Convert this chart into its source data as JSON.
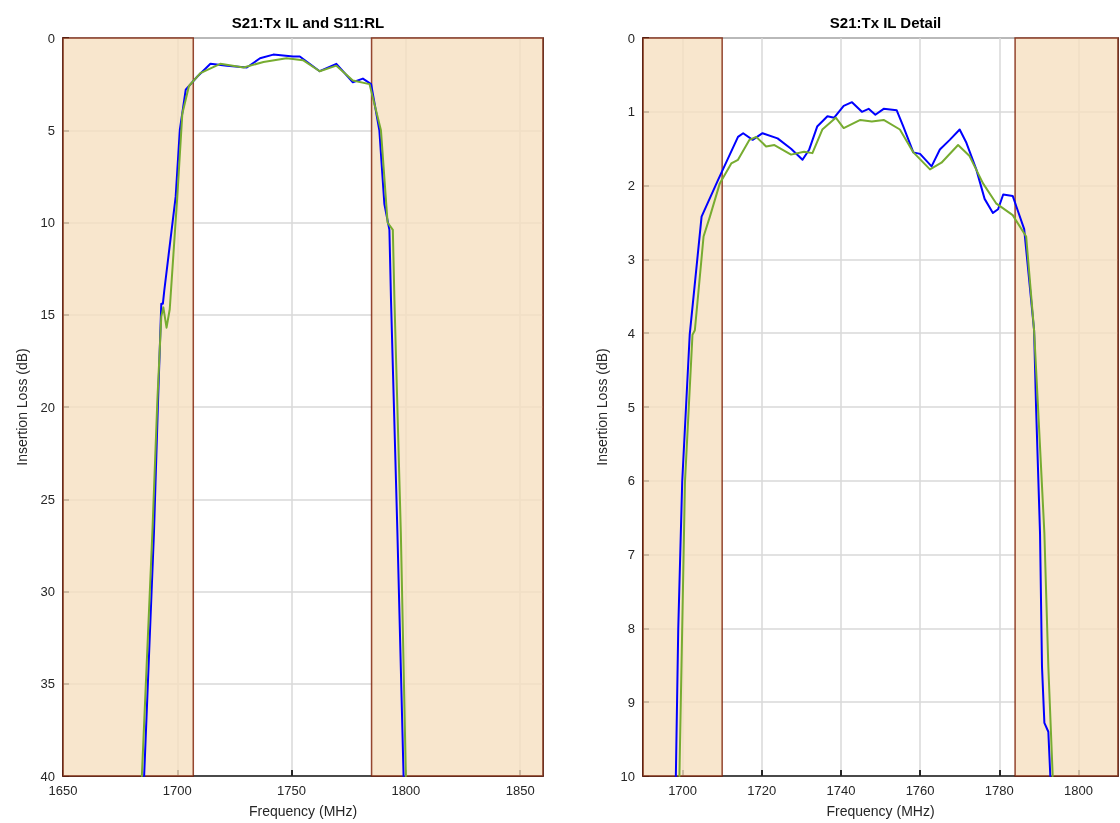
{
  "chart_data": [
    {
      "type": "line",
      "title": "S21:Tx IL and S11:RL",
      "xlabel": "Frequency (MHz)",
      "ylabel": "Insertion Loss (dB)",
      "xlim": [
        1650,
        1860
      ],
      "xticks": [
        1650,
        1700,
        1750,
        1800,
        1850
      ],
      "ylim": [
        40,
        0
      ],
      "yticks": [
        0,
        5,
        10,
        15,
        20,
        25,
        30,
        35,
        40
      ],
      "grid": true,
      "bands": [
        {
          "axis": "x",
          "from": 1650,
          "to": 1707,
          "color": "#f6e0c0"
        },
        {
          "axis": "x",
          "from": 1785,
          "to": 1860,
          "color": "#f6e0c0"
        }
      ],
      "series": [
        {
          "color": "#0000ff",
          "x": [
            1685.5,
            1689.8,
            1691.6,
            1693,
            1693.7,
            1694.3,
            1699.3,
            1701.1,
            1703.7,
            1708.7,
            1714.5,
            1721.7,
            1730.4,
            1736.2,
            1742,
            1750.7,
            1753.6,
            1762.3,
            1769.6,
            1776.8,
            1781.2,
            1784.8,
            1788.4,
            1790.6,
            1792.8,
            1793.5,
            1796.3,
            1799
          ],
          "values": [
            40,
            26.8,
            19.6,
            14.4,
            14.4,
            13.7,
            8.6,
            5,
            2.8,
            2.1,
            1.4,
            1.5,
            1.6,
            1.1,
            0.9,
            1,
            1,
            1.8,
            1.4,
            2.4,
            2.2,
            2.5,
            5,
            9,
            10.4,
            14.2,
            26.8,
            40
          ]
        },
        {
          "color": "#77ac30",
          "x": [
            1684.5,
            1689.1,
            1691.3,
            1693,
            1693.9,
            1695.3,
            1696.7,
            1700,
            1702.2,
            1705.1,
            1710.1,
            1718.8,
            1729,
            1737.7,
            1747.8,
            1755,
            1762.3,
            1769.6,
            1776.8,
            1784.1,
            1789.1,
            1792,
            1794.3,
            1795,
            1797.8,
            1800
          ],
          "values": [
            40,
            26.8,
            19.6,
            15.1,
            14.6,
            15.7,
            14.7,
            8.6,
            4.1,
            2.6,
            1.9,
            1.4,
            1.6,
            1.3,
            1.1,
            1.2,
            1.8,
            1.5,
            2.3,
            2.5,
            5,
            10,
            10.4,
            14.2,
            26.8,
            40
          ]
        }
      ]
    },
    {
      "type": "line",
      "title": "S21:Tx IL Detail",
      "xlabel": "Frequency (MHz)",
      "ylabel": "Insertion Loss (dB)",
      "xlim": [
        1690,
        1810
      ],
      "xticks": [
        1700,
        1720,
        1740,
        1760,
        1780,
        1800
      ],
      "ylim": [
        10,
        0
      ],
      "yticks": [
        0,
        1,
        2,
        3,
        4,
        5,
        6,
        7,
        8,
        9,
        10
      ],
      "grid": true,
      "bands": [
        {
          "axis": "x",
          "from": 1690,
          "to": 1710,
          "color": "#f6e0c0"
        },
        {
          "axis": "x",
          "from": 1784,
          "to": 1810,
          "color": "#f6e0c0"
        }
      ],
      "series": [
        {
          "color": "#0000ff",
          "x": [
            1698.3,
            1698.9,
            1699.9,
            1701.8,
            1704.8,
            1709,
            1714,
            1715.3,
            1717.7,
            1720.2,
            1724,
            1727.4,
            1730.3,
            1732,
            1734,
            1736.6,
            1738.3,
            1740.7,
            1742.8,
            1745.3,
            1747,
            1748.7,
            1750.8,
            1754.1,
            1755.7,
            1758.3,
            1760,
            1762.9,
            1765,
            1767.5,
            1770,
            1771.7,
            1774.2,
            1776.3,
            1778.4,
            1779.7,
            1781,
            1783.4,
            1786.3,
            1788.8,
            1789.3,
            1790.3,
            1790.8,
            1791.4,
            1792.4,
            1792.9
          ],
          "values": [
            10,
            8.02,
            6.02,
            4.02,
            2.42,
            1.92,
            1.34,
            1.29,
            1.38,
            1.29,
            1.36,
            1.5,
            1.65,
            1.51,
            1.2,
            1.06,
            1.08,
            0.92,
            0.87,
            1,
            0.96,
            1.04,
            0.96,
            0.98,
            1.19,
            1.55,
            1.57,
            1.74,
            1.51,
            1.38,
            1.24,
            1.42,
            1.78,
            2.18,
            2.37,
            2.32,
            2.12,
            2.14,
            2.59,
            3.96,
            5,
            6.71,
            8.52,
            9.28,
            9.4,
            10
          ]
        },
        {
          "color": "#77ac30",
          "x": [
            1699.2,
            1700.6,
            1702.5,
            1703.1,
            1705.3,
            1706.9,
            1709.4,
            1712.3,
            1714,
            1716.9,
            1718.6,
            1721.1,
            1723.2,
            1727.4,
            1730.7,
            1732.8,
            1735.3,
            1738.7,
            1740.7,
            1744.9,
            1747.8,
            1750.8,
            1754.9,
            1758.3,
            1762.5,
            1765.4,
            1769.6,
            1772.5,
            1775.9,
            1779.2,
            1783.4,
            1786.8,
            1788.8,
            1789.7,
            1791.4,
            1792.4,
            1793.5
          ],
          "values": [
            10,
            6.02,
            4.02,
            3.96,
            2.69,
            2.42,
            1.97,
            1.7,
            1.65,
            1.38,
            1.34,
            1.47,
            1.45,
            1.58,
            1.54,
            1.56,
            1.24,
            1.08,
            1.22,
            1.11,
            1.13,
            1.11,
            1.24,
            1.55,
            1.78,
            1.69,
            1.45,
            1.6,
            1.97,
            2.24,
            2.4,
            2.69,
            3.96,
            4.9,
            6.71,
            8.52,
            10
          ]
        }
      ]
    }
  ]
}
